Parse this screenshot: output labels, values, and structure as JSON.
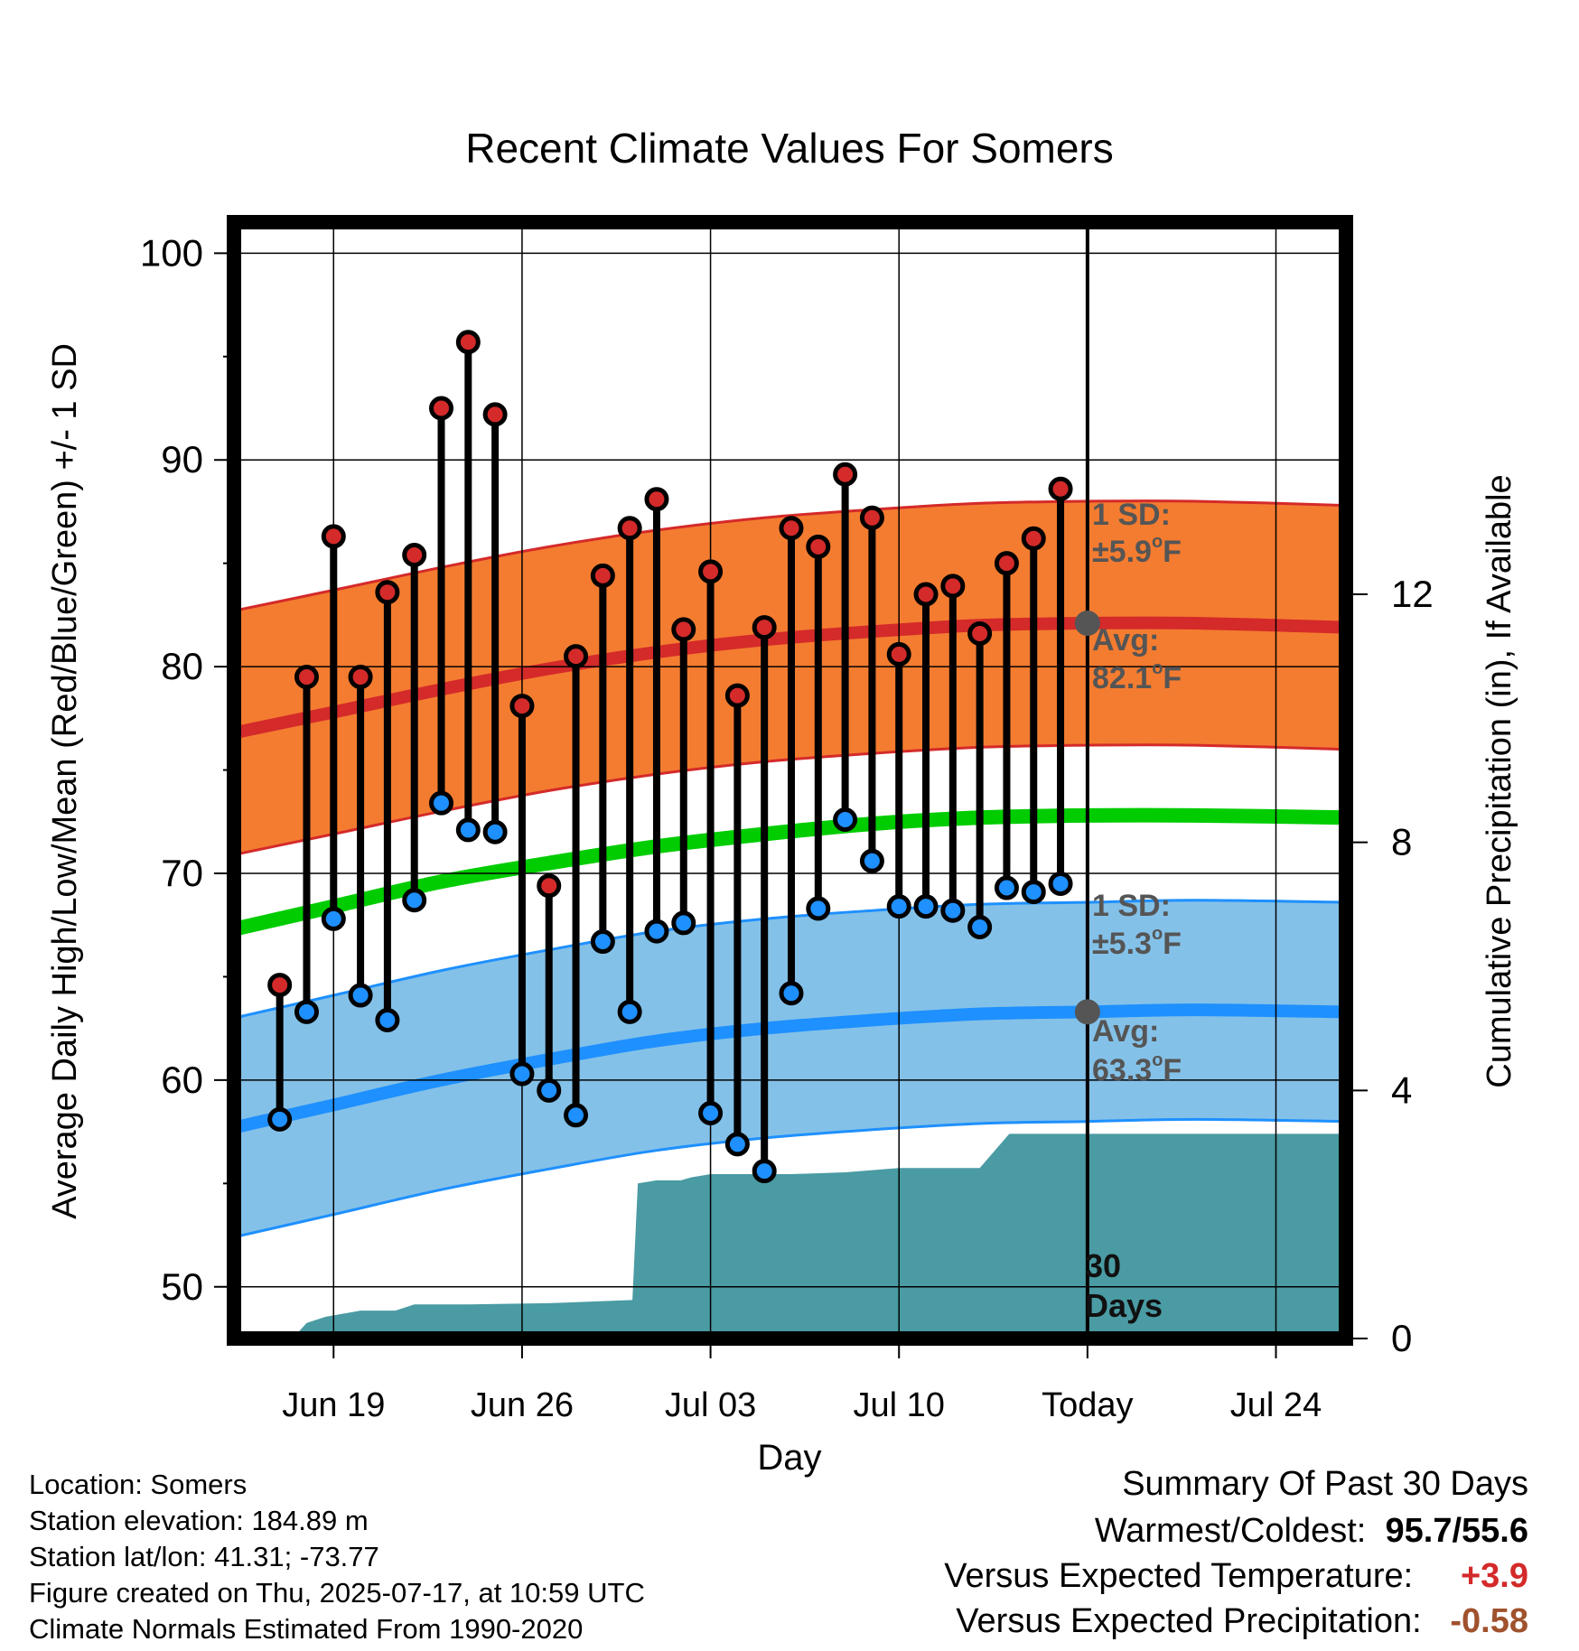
{
  "colors": {
    "high": "#d42a2a",
    "high_band": "#f47c30",
    "low": "#1e90ff",
    "low_band": "#84c1e8",
    "mean": "#00cc00",
    "precip": "#4a9ba3",
    "annotation": "#555555",
    "positive": "#d42a2a",
    "precip_diff": "#a0522d"
  },
  "chart_data": {
    "type": "line",
    "title": "Recent Climate Values For Somers",
    "xlabel": "Day",
    "ylabel": "Average Daily High/Low/Mean (Red/Blue/Green) +/- 1 SD",
    "y2label": "Cumulative Precipitation (in), If Available",
    "ylim": [
      47.5,
      101.5
    ],
    "y_ticks": [
      "50",
      "60",
      "70",
      "80",
      "90",
      "100"
    ],
    "y2lim": [
      0,
      18
    ],
    "y2_ticks": [
      "0",
      "4",
      "8",
      "12"
    ],
    "x_tick_labels": [
      {
        "day": 19,
        "label": "Jun 19"
      },
      {
        "day": 26,
        "label": "Jun 26"
      },
      {
        "day": 33,
        "label": "Jul 03"
      },
      {
        "day": 40,
        "label": "Jul 10"
      },
      {
        "day": 47,
        "label": "Today"
      },
      {
        "day": 54,
        "label": "Jul 24"
      }
    ],
    "today_day": 47,
    "x_range_days": [
      15.3,
      56.6
    ],
    "observed": {
      "days": [
        17,
        18,
        19,
        20,
        21,
        22,
        23,
        24,
        25,
        26,
        27,
        28,
        29,
        30,
        31,
        32,
        33,
        34,
        35,
        36,
        37,
        38,
        39,
        40,
        41,
        42,
        43,
        44,
        45,
        46
      ],
      "high": [
        64.6,
        79.5,
        86.3,
        79.5,
        83.6,
        85.4,
        92.5,
        95.7,
        92.2,
        78.1,
        69.4,
        80.5,
        84.4,
        86.7,
        88.1,
        81.8,
        84.6,
        78.6,
        81.9,
        86.7,
        85.8,
        89.3,
        87.2,
        80.6,
        83.5,
        83.9,
        81.6,
        85.0,
        86.2,
        88.6
      ],
      "low": [
        58.1,
        63.3,
        67.8,
        64.1,
        62.9,
        68.7,
        73.4,
        72.1,
        72.0,
        60.3,
        59.5,
        58.3,
        66.7,
        63.3,
        67.2,
        67.6,
        58.4,
        56.9,
        55.6,
        64.2,
        68.3,
        72.6,
        70.6,
        68.4,
        68.4,
        68.2,
        67.4,
        69.3,
        69.1,
        69.5
      ]
    },
    "normals": {
      "days": [
        15.3,
        19,
        23,
        27,
        31,
        35,
        39,
        43,
        47,
        51,
        56.6
      ],
      "high_avg": [
        76.8,
        77.8,
        78.9,
        79.9,
        80.7,
        81.3,
        81.7,
        82.0,
        82.1,
        82.1,
        81.9
      ],
      "low_avg": [
        57.7,
        58.8,
        60.0,
        61.0,
        61.9,
        62.5,
        62.9,
        63.2,
        63.3,
        63.4,
        63.3
      ],
      "mean_avg": [
        67.3,
        68.4,
        69.6,
        70.5,
        71.3,
        71.9,
        72.4,
        72.7,
        72.8,
        72.8,
        72.7
      ],
      "high_sd": 5.9,
      "low_sd": 5.3
    },
    "precip": {
      "days": [
        15.3,
        16.5,
        17.5,
        18,
        18.7,
        20,
        21.3,
        22,
        24,
        27,
        30.1,
        30.3,
        31,
        31.9,
        32.3,
        33,
        36,
        38,
        40,
        41,
        43,
        44,
        44.1,
        47,
        56.6
      ],
      "cumulative": [
        0,
        0,
        0.01,
        0.25,
        0.35,
        0.45,
        0.45,
        0.55,
        0.55,
        0.57,
        0.62,
        2.5,
        2.55,
        2.55,
        2.6,
        2.65,
        2.65,
        2.68,
        2.75,
        2.75,
        2.75,
        3.25,
        3.3,
        3.3,
        3.3
      ]
    },
    "annotations": {
      "high_sd_label": "1 SD:",
      "high_sd_value": "±5.9",
      "high_avg_label": "Avg:",
      "high_avg_value": "82.1",
      "low_sd_label": "1 SD:",
      "low_sd_value": "±5.3",
      "low_avg_label": "Avg:",
      "low_avg_value": "63.3",
      "unit_sup": "o",
      "unit_letter": "F",
      "window_line1": "30",
      "window_line2": "Days"
    }
  },
  "info": {
    "location": "Location: Somers",
    "elevation": "Station elevation: 184.89 m",
    "latlon": "Station lat/lon: 41.31; -73.77",
    "created": "Figure created on Thu, 2025-07-17, at 10:59 UTC",
    "normals": "Climate Normals Estimated From 1990-2020"
  },
  "summary": {
    "heading": "Summary Of Past 30 Days",
    "warm_cold_label": "Warmest/Coldest:",
    "warmest": "95.7",
    "separator": "/",
    "coldest": "55.6",
    "temp_label": "Versus Expected Temperature:",
    "temp_value": "+3.9",
    "precip_label": "Versus Expected Precipitation:",
    "precip_value": "-0.58"
  }
}
